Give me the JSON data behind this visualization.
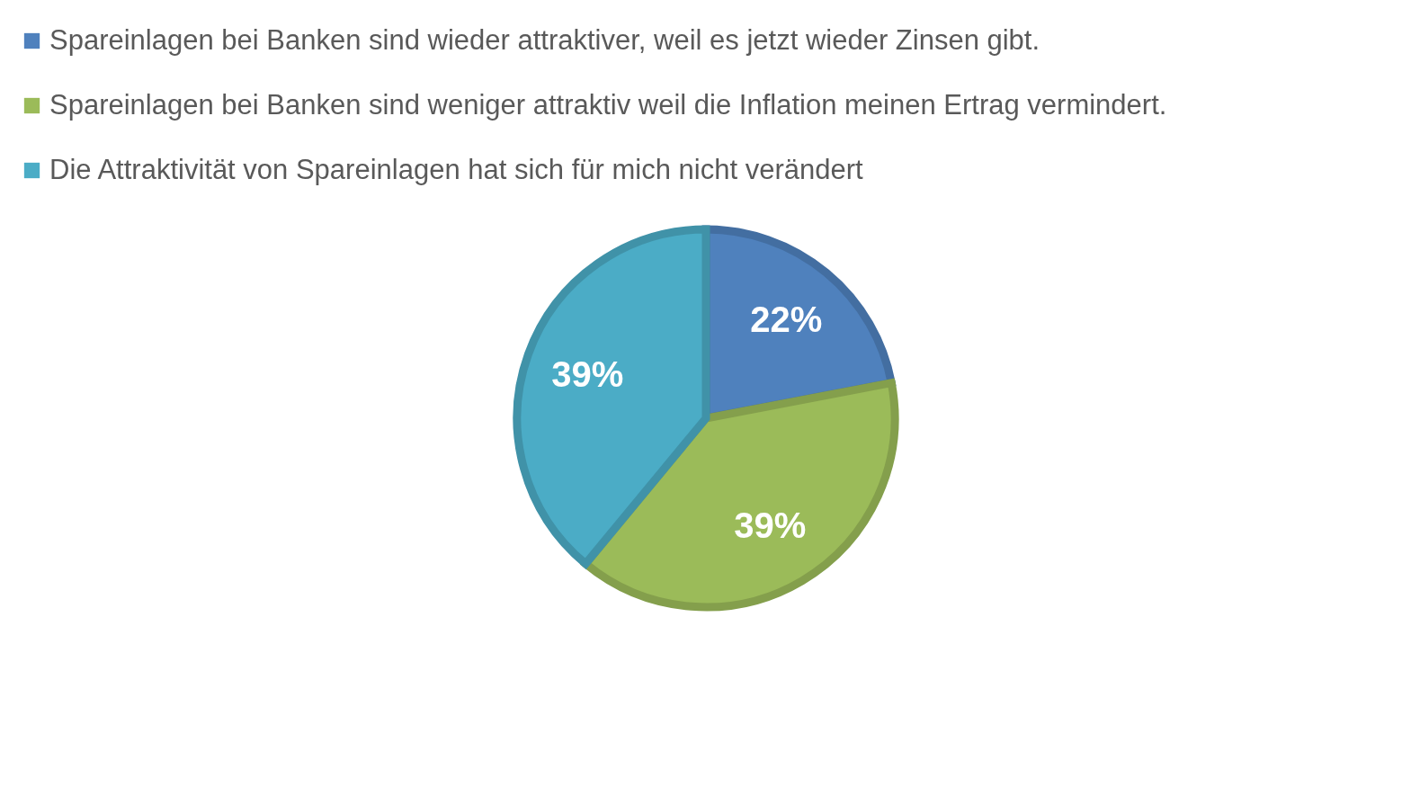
{
  "chart_data": {
    "type": "pie",
    "categories": [
      "Spareinlagen bei Banken sind wieder attraktiver, weil es jetzt wieder Zinsen gibt.",
      "Spareinlagen bei Banken sind weniger attraktiv weil die Inflation meinen Ertrag vermindert.",
      "Die Attraktivität von Spareinlagen hat sich für mich nicht verändert"
    ],
    "values": [
      22,
      39,
      39
    ],
    "colors": [
      "#4f81bd",
      "#9bbb59",
      "#4bacc6"
    ],
    "value_labels": [
      "22%",
      "39%",
      "39%"
    ],
    "legend": "top left"
  }
}
